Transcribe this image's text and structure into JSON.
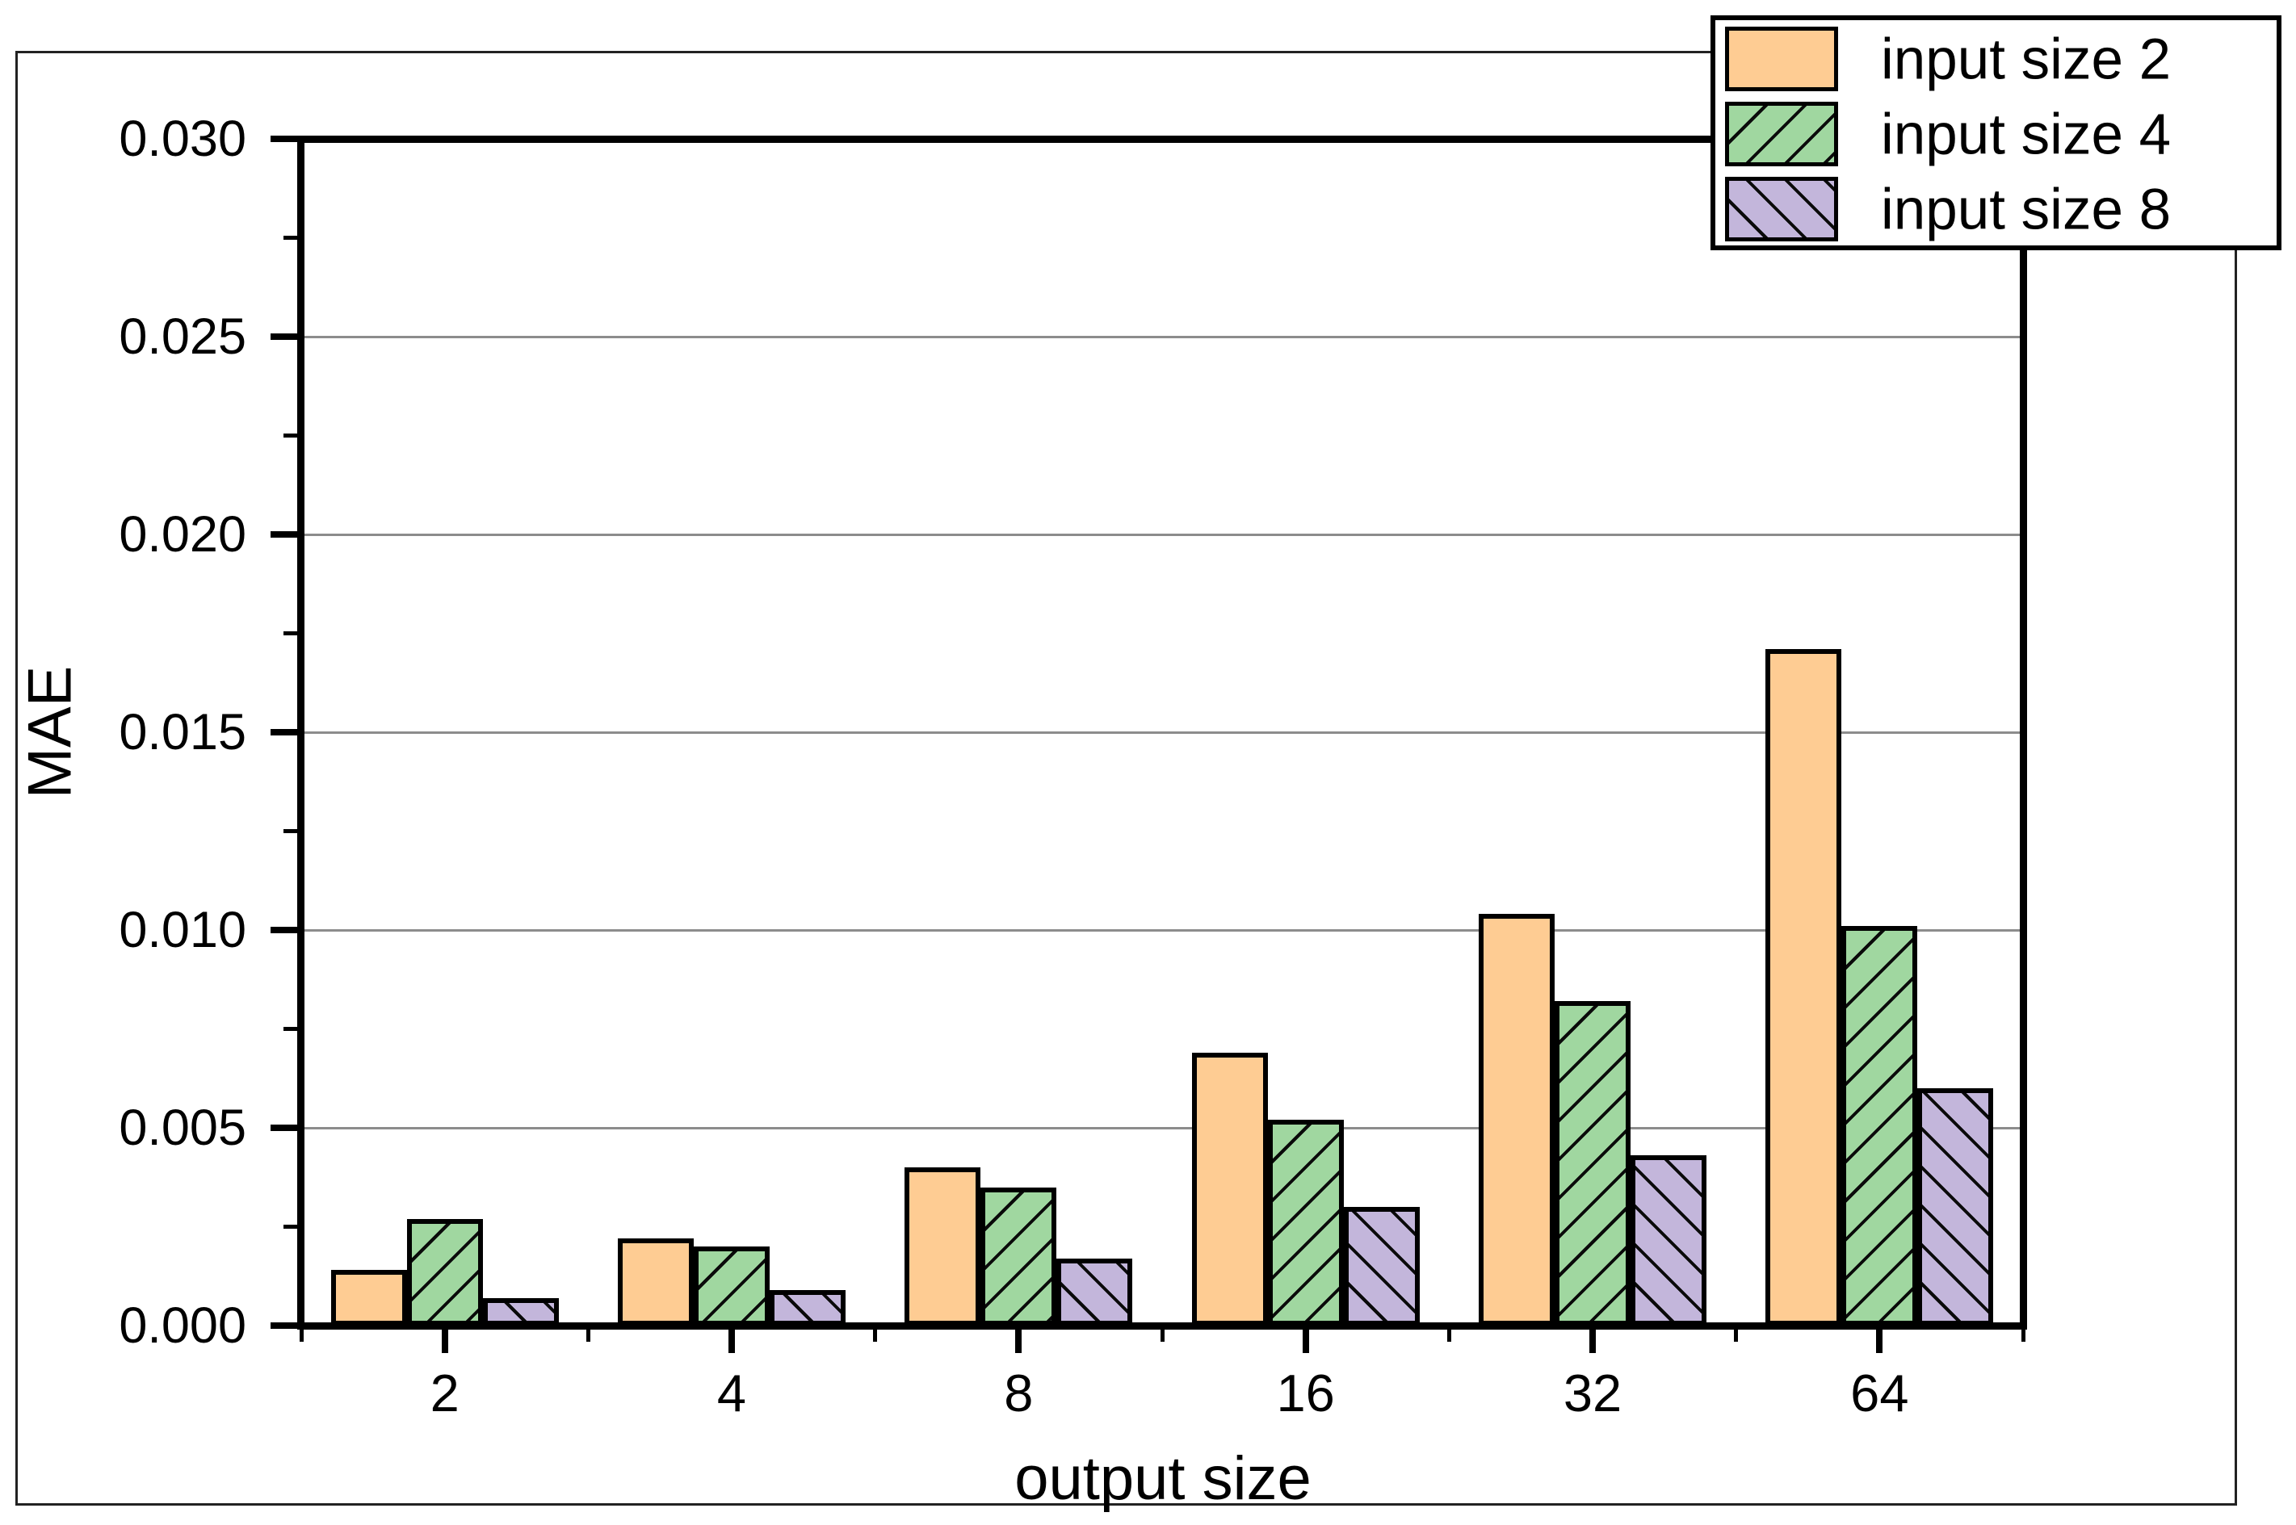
{
  "chart_data": {
    "type": "bar",
    "title": "",
    "xlabel": "output size",
    "ylabel": "MAE",
    "categories": [
      "2",
      "4",
      "8",
      "16",
      "32",
      "64"
    ],
    "series": [
      {
        "name": "input size 2",
        "color": "#FECC93",
        "hatch": "none",
        "values": [
          0.0014,
          0.0022,
          0.004,
          0.0069,
          0.0104,
          0.0171
        ]
      },
      {
        "name": "input size 4",
        "color": "#A0D7A0",
        "hatch": "/",
        "values": [
          0.0027,
          0.002,
          0.0035,
          0.0052,
          0.0082,
          0.0101
        ]
      },
      {
        "name": "input size 8",
        "color": "#C3B6DB",
        "hatch": "\\",
        "values": [
          0.0007,
          0.0009,
          0.0017,
          0.003,
          0.0043,
          0.006
        ]
      }
    ],
    "ylim": [
      0,
      0.03
    ],
    "ytick_labels": [
      "0.000",
      "0.005",
      "0.010",
      "0.015",
      "0.020",
      "0.025",
      "0.030"
    ],
    "ytick_step": 0.005,
    "yminor_step": 0.0025,
    "grid": true,
    "gridline_color": "#8c8c8c",
    "bar_edge_color": "#000000",
    "legend_position": "top-right"
  },
  "legend": {
    "items": [
      {
        "label": "input size 2"
      },
      {
        "label": "input size 4"
      },
      {
        "label": "input size 8"
      }
    ]
  }
}
